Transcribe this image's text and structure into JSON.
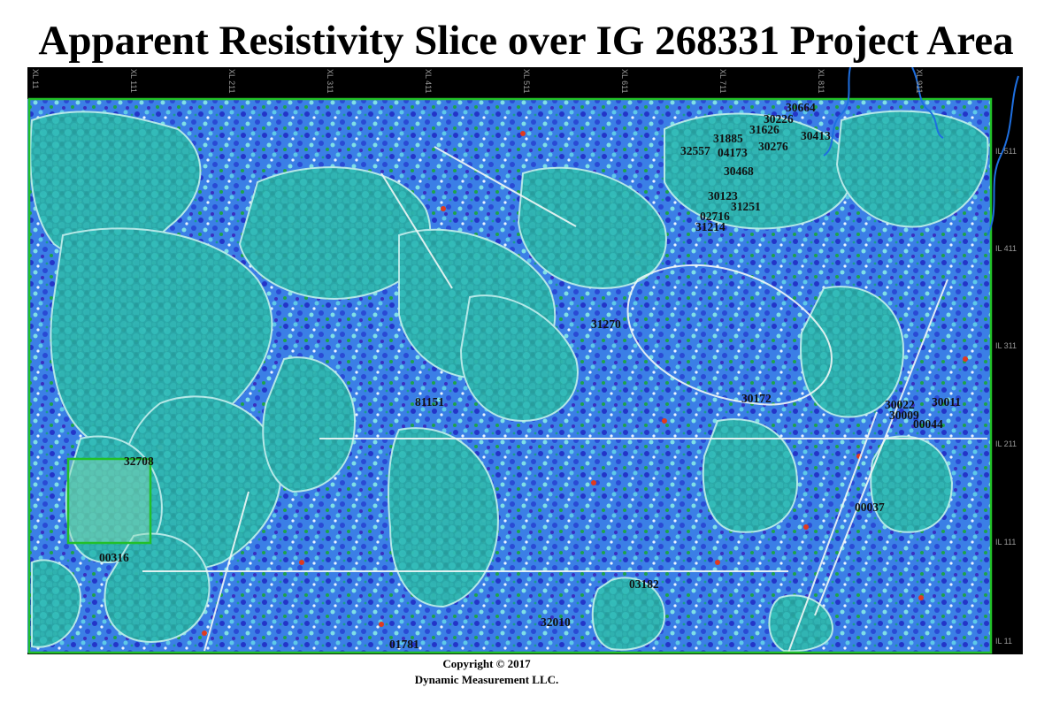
{
  "title": "Apparent Resistivity Slice over IG 268331 Project Area",
  "copyright_line1": "Copyright  © 2017",
  "copyright_line2": "Dynamic Measurement LLC.",
  "crosslines": [
    "XL 11",
    "XL 111",
    "XL 211",
    "XL 311",
    "XL 411",
    "XL 511",
    "XL 611",
    "XL 711",
    "XL 811",
    "XL 911"
  ],
  "inlines": [
    "IL 511",
    "IL 411",
    "IL 311",
    "IL 211",
    "IL 111",
    "IL 11"
  ],
  "wells": [
    {
      "id": "30664"
    },
    {
      "id": "30226"
    },
    {
      "id": "31626"
    },
    {
      "id": "31885"
    },
    {
      "id": "30413"
    },
    {
      "id": "30276"
    },
    {
      "id": "32557"
    },
    {
      "id": "04173"
    },
    {
      "id": "30468"
    },
    {
      "id": "30123"
    },
    {
      "id": "31251"
    },
    {
      "id": "02716"
    },
    {
      "id": "31214"
    },
    {
      "id": "31270"
    },
    {
      "id": "30172"
    },
    {
      "id": "81151"
    },
    {
      "id": "30022"
    },
    {
      "id": "30011"
    },
    {
      "id": "30009"
    },
    {
      "id": "00044"
    },
    {
      "id": "32708"
    },
    {
      "id": "00316"
    },
    {
      "id": "00037"
    },
    {
      "id": "03182"
    },
    {
      "id": "32010"
    },
    {
      "id": "01781"
    }
  ],
  "colors": {
    "background": "#000000",
    "survey_outline": "#22c02a",
    "coastline": "#1e6fe0",
    "teal_low": "#2ab3b0",
    "blue_mid": "#2f55d8",
    "green": "#1ea34a",
    "red_high": "#e03a1e"
  }
}
